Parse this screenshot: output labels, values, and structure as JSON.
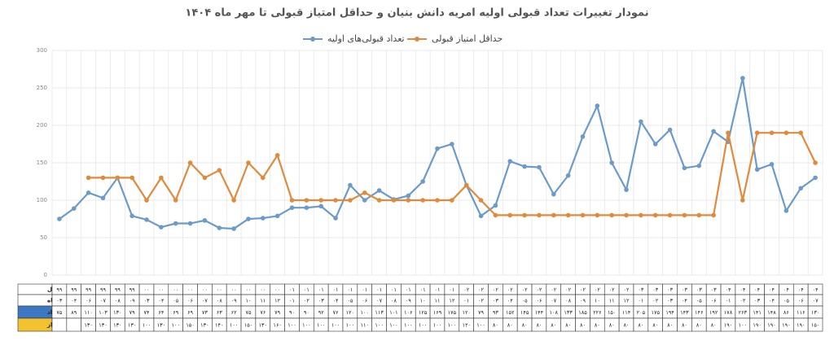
{
  "chart_data": {
    "type": "line",
    "title": "نمودار تغییرات تعداد قبولی اولیه امریه دانش بنیان و حداقل امتیاز قبولی تا مهر ماه ۱۴۰۴",
    "ylim": [
      0,
      300
    ],
    "yticks": [
      0,
      50,
      100,
      150,
      200,
      250,
      300
    ],
    "grid": true,
    "legend": "top",
    "table": {
      "headers": [
        "سال",
        "ماه",
        "تعداد",
        "امتیاز"
      ],
      "years": [
        "۹۹",
        "۹۹",
        "۹۹",
        "۹۹",
        "۹۹",
        "۹۹",
        "۰۰",
        "۰۰",
        "۰۰",
        "۰۰",
        "۰۰",
        "۰۰",
        "۰۰",
        "۰۰",
        "۰۰",
        "۰۰",
        "۰۱",
        "۰۱",
        "۰۱",
        "۰۱",
        "۰۱",
        "۰۱",
        "۰۱",
        "۰۱",
        "۰۱",
        "۰۱",
        "۰۱",
        "۰۱",
        "۰۲",
        "۰۲",
        "۰۲",
        "۰۲",
        "۰۲",
        "۰۲",
        "۰۲",
        "۰۲",
        "۰۲",
        "۰۲",
        "۰۲",
        "۰۲",
        "۰۳",
        "۰۳",
        "۰۳",
        "۰۳",
        "۰۳",
        "۰۳",
        "۰۴",
        "۰۴",
        "۰۴",
        "۰۴",
        "۰۴",
        "۰۴",
        "۰۴"
      ],
      "months": [
        "۰۳",
        "۰۴",
        "۰۶",
        "۰۷",
        "۰۸",
        "۰۹",
        "۰۳",
        "۰۴",
        "۰۵",
        "۰۶",
        "۰۷",
        "۰۸",
        "۰۹",
        "۱۰",
        "۱۱",
        "۱۲",
        "۰۱",
        "۰۲",
        "۰۳",
        "۰۴",
        "۰۵",
        "۰۶",
        "۰۷",
        "۰۸",
        "۰۹",
        "۱۰",
        "۱۱",
        "۱۲",
        "۰۱",
        "۰۲",
        "۰۳",
        "۰۴",
        "۰۵",
        "۰۶",
        "۰۷",
        "۰۸",
        "۰۹",
        "۱۰",
        "۱۱",
        "۱۲",
        "۰۱",
        "۰۲",
        "۰۳",
        "۰۴",
        "۰۵",
        "۰۶",
        "۰۱",
        "۰۲",
        "۰۳",
        "۰۴",
        "۰۵",
        "۰۶",
        "۰۷"
      ]
    },
    "series": [
      {
        "name": "تعداد قبولی‌های اولیه",
        "color": "#6a9bcb",
        "values": [
          75,
          89,
          110,
          103,
          130,
          79,
          74,
          64,
          69,
          69,
          73,
          63,
          62,
          75,
          76,
          79,
          90,
          90,
          92,
          76,
          120,
          100,
          113,
          101,
          106,
          125,
          169,
          175,
          120,
          79,
          93,
          152,
          145,
          144,
          108,
          133,
          185,
          226,
          150,
          114,
          205,
          175,
          194,
          143,
          146,
          192,
          178,
          263,
          141,
          148,
          86,
          116,
          130
        ],
        "value_labels": [
          "۷۵",
          "۸۹",
          "۱۱۰",
          "۱۰۳",
          "۱۳۰",
          "۷۹",
          "۷۴",
          "۶۴",
          "۶۹",
          "۶۹",
          "۷۳",
          "۶۳",
          "۶۲",
          "۷۵",
          "۷۶",
          "۷۹",
          "۹۰",
          "۹۰",
          "۹۲",
          "۷۶",
          "۱۲۰",
          "۱۰۰",
          "۱۱۳",
          "۱۰۱",
          "۱۰۶",
          "۱۲۵",
          "۱۶۹",
          "۱۷۵",
          "۱۲۰",
          "۷۹",
          "۹۳",
          "۱۵۲",
          "۱۴۵",
          "۱۴۴",
          "۱۰۸",
          "۱۳۳",
          "۱۸۵",
          "۲۲۶",
          "۱۵۰",
          "۱۱۴",
          "۲۰۵",
          "۱۷۵",
          "۱۹۴",
          "۱۴۳",
          "۱۴۶",
          "۱۹۲",
          "۱۷۸",
          "۲۶۳",
          "۱۴۱",
          "۱۴۸",
          "۸۶",
          "۱۱۶",
          "۱۳۰"
        ]
      },
      {
        "name": "حداقل امتیاز قبولی",
        "color": "#e28a3c",
        "values": [
          null,
          null,
          130,
          130,
          130,
          130,
          100,
          130,
          100,
          150,
          130,
          140,
          100,
          150,
          130,
          160,
          100,
          100,
          100,
          100,
          100,
          110,
          100,
          100,
          100,
          100,
          100,
          100,
          120,
          100,
          80,
          80,
          80,
          80,
          80,
          80,
          80,
          80,
          80,
          80,
          80,
          80,
          80,
          80,
          80,
          80,
          190,
          100,
          190,
          190,
          190,
          190,
          150
        ],
        "value_labels": [
          null,
          null,
          "۱۳۰",
          "۱۳۰",
          "۱۳۰",
          "۱۳۰",
          "۱۰۰",
          "۱۳۰",
          "۱۰۰",
          "۱۵۰",
          "۱۳۰",
          "۱۴۰",
          "۱۰۰",
          "۱۵۰",
          "۱۳۰",
          "۱۶۰",
          "۱۰۰",
          "۱۰۰",
          "۱۰۰",
          "۱۰۰",
          "۱۰۰",
          "۱۱۰",
          "۱۰۰",
          "۱۰۰",
          "۱۰۰",
          "۱۰۰",
          "۱۰۰",
          "۱۰۰",
          "۱۲۰",
          "۱۰۰",
          "۸۰",
          "۸۰",
          "۸۰",
          "۸۰",
          "۸۰",
          "۸۰",
          "۸۰",
          "۸۰",
          "۸۰",
          "۸۰",
          "۸۰",
          "۸۰",
          "۸۰",
          "۸۰",
          "۸۰",
          "۸۰",
          "۱۹۰",
          "۱۰۰",
          "۱۹۰",
          "۱۹۰",
          "۱۹۰",
          "۱۹۰",
          "۱۵۰"
        ]
      }
    ]
  }
}
